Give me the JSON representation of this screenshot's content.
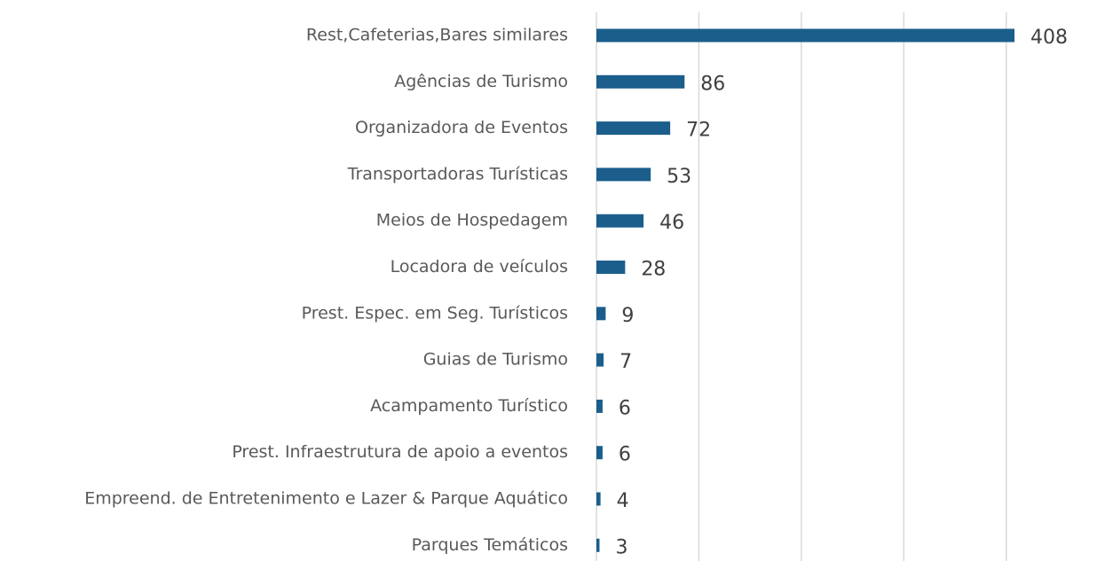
{
  "chart_data": {
    "type": "barh",
    "categories": [
      "Rest,Cafeterias,Bares similares",
      "Agências de Turismo",
      "Organizadora de Eventos",
      "Transportadoras Turísticas",
      "Meios de Hospedagem",
      "Locadora de veículos",
      "Prest. Espec. em Seg. Turísticos",
      "Guias de Turismo",
      "Acampamento Turístico",
      "Prest. Infraestrutura de apoio a eventos",
      "Empreend. de Entretenimento e Lazer & Parque Aquático",
      "Parques Temáticos"
    ],
    "values": [
      408,
      86,
      72,
      53,
      46,
      28,
      9,
      7,
      6,
      6,
      4,
      3
    ],
    "color": "#1b5e8c",
    "xlim": [
      0,
      450
    ],
    "xticks": [
      0,
      100,
      200,
      300,
      400
    ],
    "grid": true
  }
}
